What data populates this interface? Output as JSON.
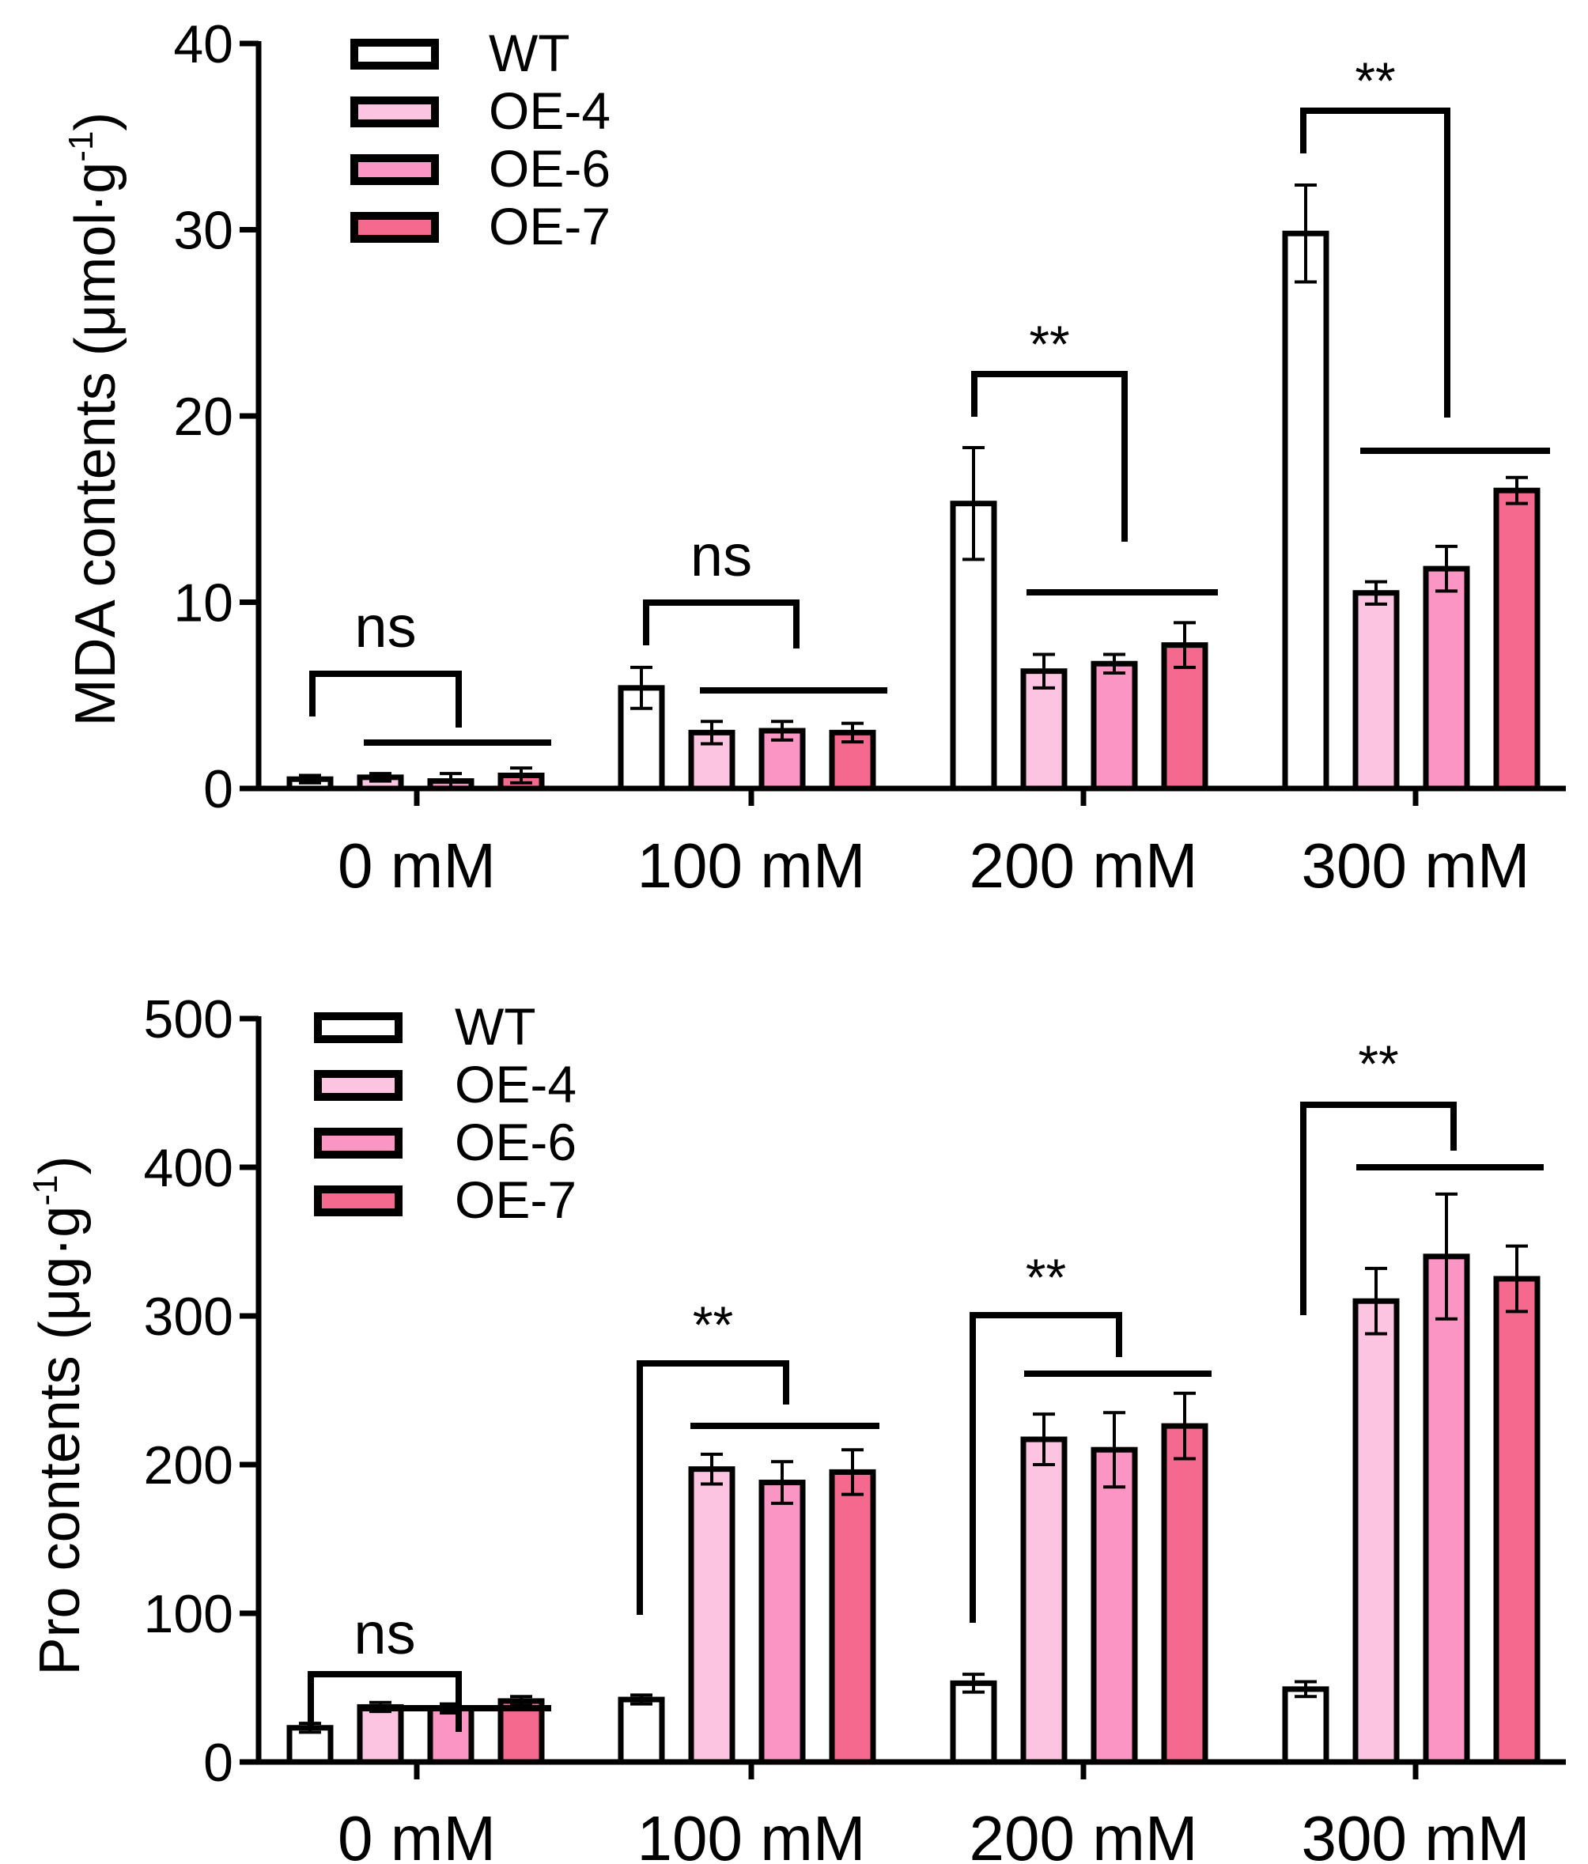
{
  "colors": {
    "WT": "#ffffff",
    "OE-4": "#fcc4e0",
    "OE-6": "#fa95c4",
    "OE-7": "#f5698f",
    "stroke": "#000000"
  },
  "chart_data": [
    {
      "type": "bar",
      "ylabel_main": "MDA contents (μmol·g",
      "ylabel_exp": "-1",
      "ylabel_tail": ")",
      "ylim": [
        0,
        40
      ],
      "yticks": [
        "0",
        "10",
        "20",
        "30",
        "40"
      ],
      "categories": [
        "0 mM",
        "100 mM",
        "200 mM",
        "300 mM"
      ],
      "legend_position": "top-left",
      "series": [
        {
          "name": "WT",
          "values": [
            0.5,
            5.4,
            15.3,
            29.8
          ],
          "errors": [
            0.2,
            1.1,
            3.0,
            2.6
          ]
        },
        {
          "name": "OE-4",
          "values": [
            0.6,
            3.0,
            6.3,
            10.5
          ],
          "errors": [
            0.2,
            0.6,
            0.9,
            0.6
          ]
        },
        {
          "name": "OE-6",
          "values": [
            0.4,
            3.1,
            6.7,
            11.8
          ],
          "errors": [
            0.4,
            0.5,
            0.5,
            1.2
          ]
        },
        {
          "name": "OE-7",
          "values": [
            0.7,
            3.0,
            7.7,
            16.0
          ],
          "errors": [
            0.4,
            0.5,
            1.2,
            0.7
          ]
        }
      ],
      "significance": [
        "ns",
        "ns",
        "**",
        "**"
      ]
    },
    {
      "type": "bar",
      "ylabel_main": "Pro contents (μg·g",
      "ylabel_exp": "-1",
      "ylabel_tail": ")",
      "ylim": [
        0,
        500
      ],
      "yticks": [
        "0",
        "100",
        "200",
        "300",
        "400",
        "500"
      ],
      "categories": [
        "0 mM",
        "100 mM",
        "200 mM",
        "300 mM"
      ],
      "legend_position": "top-left",
      "series": [
        {
          "name": "WT",
          "values": [
            23,
            42,
            53,
            49
          ],
          "errors": [
            3,
            3,
            6,
            5
          ]
        },
        {
          "name": "OE-4",
          "values": [
            37,
            197,
            217,
            310
          ],
          "errors": [
            3,
            10,
            17,
            22
          ]
        },
        {
          "name": "OE-6",
          "values": [
            36,
            188,
            210,
            340
          ],
          "errors": [
            3,
            14,
            25,
            42
          ]
        },
        {
          "name": "OE-7",
          "values": [
            41,
            195,
            226,
            325
          ],
          "errors": [
            3,
            15,
            22,
            22
          ]
        }
      ],
      "significance": [
        "ns",
        "**",
        "**",
        "**"
      ]
    }
  ]
}
